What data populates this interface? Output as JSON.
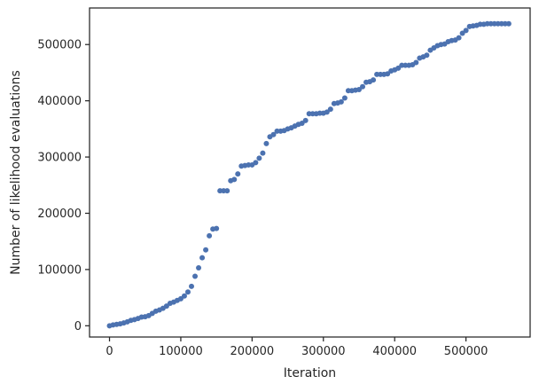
{
  "chart_data": {
    "type": "scatter",
    "title": "",
    "xlabel": "Iteration",
    "ylabel": "Number of likelihood evaluations",
    "xlim": [
      -28000,
      590000
    ],
    "ylim": [
      -20000,
      565000
    ],
    "x_ticks": [
      0,
      100000,
      200000,
      300000,
      400000,
      500000
    ],
    "x_tick_labels": [
      "0",
      "100000",
      "200000",
      "300000",
      "400000",
      "500000"
    ],
    "y_ticks": [
      0,
      100000,
      200000,
      300000,
      400000,
      500000
    ],
    "y_tick_labels": [
      "0",
      "100000",
      "200000",
      "300000",
      "400000",
      "500000"
    ],
    "grid": false,
    "marker_color": "#4c72b0",
    "series": [
      {
        "x": [
          0,
          5000,
          10000,
          15000,
          20000,
          25000,
          30000,
          35000,
          40000,
          45000,
          50000,
          55000,
          60000,
          65000,
          70000,
          75000,
          80000,
          85000,
          90000,
          95000,
          100000,
          105000,
          110000,
          115000,
          120000,
          125000,
          130000,
          135000,
          140000,
          145000,
          150000,
          155000,
          160000,
          165000,
          170000,
          175000,
          180000,
          185000,
          190000,
          195000,
          200000,
          205000,
          210000,
          215000,
          220000,
          225000,
          230000,
          235000,
          240000,
          245000,
          250000,
          255000,
          260000,
          265000,
          270000,
          275000,
          280000,
          285000,
          290000,
          295000,
          300000,
          305000,
          310000,
          315000,
          320000,
          325000,
          330000,
          335000,
          340000,
          345000,
          350000,
          355000,
          360000,
          365000,
          370000,
          375000,
          380000,
          385000,
          390000,
          395000,
          400000,
          405000,
          410000,
          415000,
          420000,
          425000,
          430000,
          435000,
          440000,
          445000,
          450000,
          455000,
          460000,
          465000,
          470000,
          475000,
          480000,
          485000,
          490000,
          495000,
          500000,
          505000,
          510000,
          515000,
          520000,
          525000,
          530000,
          535000,
          540000,
          545000,
          550000,
          555000,
          560000
        ],
        "y": [
          0,
          1500,
          2500,
          3500,
          5000,
          7000,
          9500,
          11000,
          13000,
          15500,
          16000,
          18000,
          22000,
          26000,
          28000,
          31000,
          35000,
          40000,
          42000,
          45000,
          48000,
          53000,
          60000,
          70000,
          88000,
          103000,
          121000,
          135000,
          160000,
          172000,
          173000,
          240000,
          240000,
          240000,
          258000,
          260000,
          270000,
          284000,
          285000,
          286000,
          286000,
          290000,
          298000,
          307000,
          324000,
          336000,
          340000,
          346000,
          346000,
          347000,
          350000,
          352000,
          355000,
          358000,
          360000,
          365000,
          377000,
          377000,
          377000,
          378000,
          378000,
          380000,
          385000,
          395000,
          396000,
          398000,
          405000,
          418000,
          418000,
          419000,
          420000,
          425000,
          433000,
          434000,
          437000,
          447000,
          447000,
          447000,
          448000,
          453000,
          455000,
          458000,
          463000,
          463000,
          463000,
          464000,
          468000,
          476000,
          478000,
          481000,
          490000,
          494000,
          498000,
          500000,
          501000,
          505000,
          507000,
          508000,
          512000,
          520000,
          525000,
          532000,
          533000,
          534000,
          536000,
          536000,
          537000,
          537000,
          537000,
          537000,
          537000,
          537000,
          537000
        ]
      }
    ]
  }
}
